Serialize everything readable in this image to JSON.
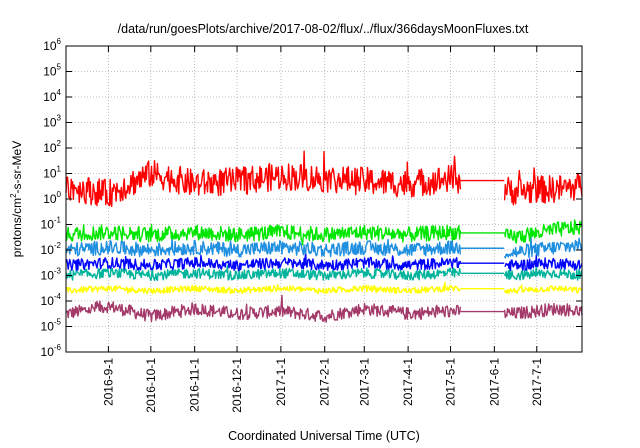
{
  "chart_data": {
    "type": "line",
    "title": "/data/run/goesPlots/archive/2017-08-02/flux/../flux/366daysMoonFluxes.txt",
    "xlabel": "Coordinated Universal Time (UTC)",
    "ylabel": {
      "prefix": "protons/cm",
      "sup": "2",
      "suffix": "-s-sr-MeV"
    },
    "yscale": "log",
    "ylim": [
      1e-06,
      1000000.0
    ],
    "xlim": [
      "2016-08-02",
      "2017-08-02"
    ],
    "grid": true,
    "y_ticks": [
      {
        "value": -6,
        "base": "10",
        "exp": "-6"
      },
      {
        "value": -5,
        "base": "10",
        "exp": "-5"
      },
      {
        "value": -4,
        "base": "10",
        "exp": "-4"
      },
      {
        "value": -3,
        "base": "10",
        "exp": "-3"
      },
      {
        "value": -2,
        "base": "10",
        "exp": "-2"
      },
      {
        "value": -1,
        "base": "10",
        "exp": "-1"
      },
      {
        "value": 0,
        "base": "10",
        "exp": "0"
      },
      {
        "value": 1,
        "base": "10",
        "exp": "1"
      },
      {
        "value": 2,
        "base": "10",
        "exp": "2"
      },
      {
        "value": 3,
        "base": "10",
        "exp": "3"
      },
      {
        "value": 4,
        "base": "10",
        "exp": "4"
      },
      {
        "value": 5,
        "base": "10",
        "exp": "5"
      },
      {
        "value": 6,
        "base": "10",
        "exp": "6"
      }
    ],
    "x_ticks": [
      "2016-9-1",
      "2016-10-1",
      "2016-11-1",
      "2016-12-1",
      "2017-1-1",
      "2017-2-1",
      "2017-3-1",
      "2017-4-1",
      "2017-5-1",
      "2017-6-1",
      "2017-7-1"
    ],
    "x_tick_dates": [
      "2016-09-01",
      "2016-10-01",
      "2016-11-01",
      "2016-12-01",
      "2017-01-01",
      "2017-02-01",
      "2017-03-01",
      "2017-04-01",
      "2017-05-01",
      "2017-06-01",
      "2017-07-01"
    ],
    "data_gap": [
      "2017-05-08",
      "2017-06-08"
    ],
    "series": [
      {
        "color": "#a33a6a",
        "values_log10": [
          -4.5,
          -4.2,
          -4.6,
          -4.3,
          -4.5,
          -4.4,
          -4.6,
          -4.3,
          -4.5,
          -4.4,
          -4.5,
          -4.3,
          -4.4
        ]
      },
      {
        "color": "#ffff00",
        "values_log10": [
          -3.6,
          -3.5,
          -3.6,
          -3.5,
          -3.6,
          -3.5,
          -3.6,
          -3.5,
          -3.6,
          -3.5,
          -3.6,
          -3.5,
          -3.6
        ]
      },
      {
        "color": "#00b39b",
        "values_log10": [
          -3.0,
          -2.9,
          -3.0,
          -2.9,
          -3.0,
          -2.9,
          -3.0,
          -2.9,
          -3.0,
          -2.9,
          -3.0,
          -2.9,
          -3.0
        ]
      },
      {
        "color": "#0000ff",
        "values_log10": [
          -2.6,
          -2.5,
          -2.6,
          -2.5,
          -2.6,
          -2.5,
          -2.6,
          -2.5,
          -2.6,
          -2.5,
          -2.6,
          -2.5,
          -2.6
        ]
      },
      {
        "color": "#1f8fe0",
        "values_log10": [
          -2.0,
          -1.9,
          -2.0,
          -1.9,
          -2.0,
          -1.9,
          -2.0,
          -1.9,
          -2.0,
          -1.9,
          -2.1,
          -1.9,
          -1.8
        ]
      },
      {
        "color": "#00e600",
        "values_log10": [
          -1.4,
          -1.3,
          -1.4,
          -1.3,
          -1.4,
          -1.3,
          -1.4,
          -1.3,
          -1.4,
          -1.3,
          -1.5,
          -1.2,
          -1.1
        ]
      },
      {
        "color": "#ff0000",
        "values_log10": [
          0.5,
          0.2,
          1.0,
          0.6,
          0.7,
          0.9,
          0.8,
          0.7,
          0.6,
          0.8,
          0.3,
          0.4,
          0.5
        ]
      }
    ],
    "series_dates": [
      "2016-08-02",
      "2016-09-01",
      "2016-10-01",
      "2016-11-01",
      "2016-12-01",
      "2017-01-01",
      "2017-02-01",
      "2017-03-01",
      "2017-04-01",
      "2017-05-01",
      "2017-06-15",
      "2017-07-15",
      "2017-08-02"
    ]
  }
}
